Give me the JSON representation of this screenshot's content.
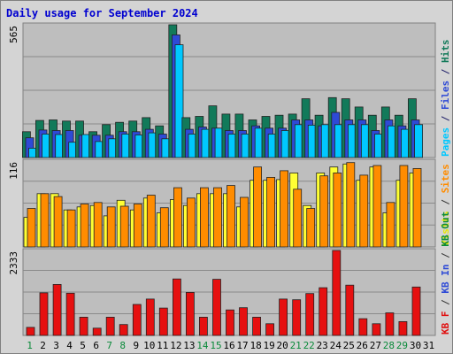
{
  "title": "Daily usage for September 2024",
  "chart_data": {
    "type": "bar",
    "days": [
      "1",
      "2",
      "3",
      "4",
      "5",
      "6",
      "7",
      "8",
      "9",
      "10",
      "11",
      "12",
      "13",
      "14",
      "15",
      "16",
      "17",
      "18",
      "19",
      "20",
      "21",
      "22",
      "23",
      "24",
      "25",
      "26",
      "27",
      "28",
      "29",
      "30",
      "31"
    ],
    "weekend_days": [
      "1",
      "7",
      "8",
      "14",
      "15",
      "21",
      "22",
      "28",
      "29"
    ],
    "panels": [
      {
        "id": "top",
        "ymax_label": "565",
        "ymax": 565,
        "right_label_parts": [
          {
            "text": "Pages",
            "color": "#00c8ff"
          },
          {
            "text": " / ",
            "color": "#1a1a66"
          },
          {
            "text": "Files",
            "color": "#2e4ad6"
          },
          {
            "text": " / ",
            "color": "#1a1a66"
          },
          {
            "text": "Hits",
            "color": "#127a5a"
          }
        ],
        "series": [
          {
            "key": "hits",
            "color": "#127a5a",
            "values": [
              110,
              158,
              160,
              155,
              155,
              110,
              140,
              150,
              155,
              170,
              135,
              565,
              170,
              175,
              220,
              185,
              185,
              160,
              175,
              180,
              185,
              250,
              180,
              255,
              250,
              215,
              180,
              215,
              180,
              250,
              0
            ]
          },
          {
            "key": "files",
            "color": "#2e4ad6",
            "values": [
              84,
              117,
              115,
              115,
              95,
              95,
              95,
              110,
              110,
              120,
              100,
              522,
              120,
              130,
              125,
              115,
              115,
              135,
              125,
              125,
              160,
              160,
              135,
              192,
              160,
              160,
              115,
              160,
              135,
              160,
              0
            ]
          },
          {
            "key": "pages",
            "color": "#00c8ff",
            "values": [
              40,
              100,
              98,
              65,
              98,
              68,
              80,
              100,
              96,
              105,
              80,
              480,
              100,
              120,
              125,
              100,
              100,
              125,
              100,
              115,
              140,
              138,
              140,
              140,
              140,
              140,
              100,
              135,
              120,
              140,
              0
            ]
          }
        ]
      },
      {
        "id": "middle",
        "ymax_label": "116",
        "ymax": 116,
        "right_label_parts": [
          {
            "text": "Visits",
            "color": "#e8e800"
          },
          {
            "text": " / ",
            "color": "#333333"
          },
          {
            "text": "Sites",
            "color": "#ff8c00"
          }
        ],
        "series": [
          {
            "key": "visits",
            "color": "#ffff33",
            "values": [
              40,
              72,
              72,
              50,
              54,
              56,
              42,
              63,
              50,
              66,
              46,
              64,
              56,
              72,
              72,
              72,
              54,
              90,
              90,
              91,
              100,
              56,
              100,
              108,
              112,
              90,
              108,
              46,
              90,
              100,
              0
            ]
          },
          {
            "key": "sites",
            "color": "#ff8c00",
            "values": [
              52,
              72,
              68,
              50,
              58,
              60,
              54,
              55,
              58,
              70,
              53,
              80,
              66,
              80,
              80,
              83,
              67,
              108,
              94,
              103,
              78,
              52,
              96,
              100,
              114,
              97,
              110,
              60,
              110,
              106,
              0
            ]
          }
        ]
      },
      {
        "id": "bottom",
        "ymax_label": "2333",
        "ymax": 2333,
        "right_label_parts": [
          {
            "text": "KB F",
            "color": "#e01010"
          },
          {
            "text": " / ",
            "color": "#333333"
          },
          {
            "text": "KB In",
            "color": "#2e4ad6"
          },
          {
            "text": " / ",
            "color": "#333333"
          },
          {
            "text": "KB Out",
            "color": "#0a8a3a"
          }
        ],
        "series": [
          {
            "key": "kbf",
            "color": "#e61010",
            "values": [
              220,
              1170,
              1400,
              1160,
              500,
              200,
              500,
              300,
              850,
              1000,
              750,
              1550,
              1180,
              500,
              1540,
              700,
              760,
              500,
              320,
              1000,
              980,
              1150,
              1310,
              2333,
              1380,
              460,
              320,
              620,
              380,
              1330,
              0
            ]
          }
        ]
      }
    ]
  }
}
